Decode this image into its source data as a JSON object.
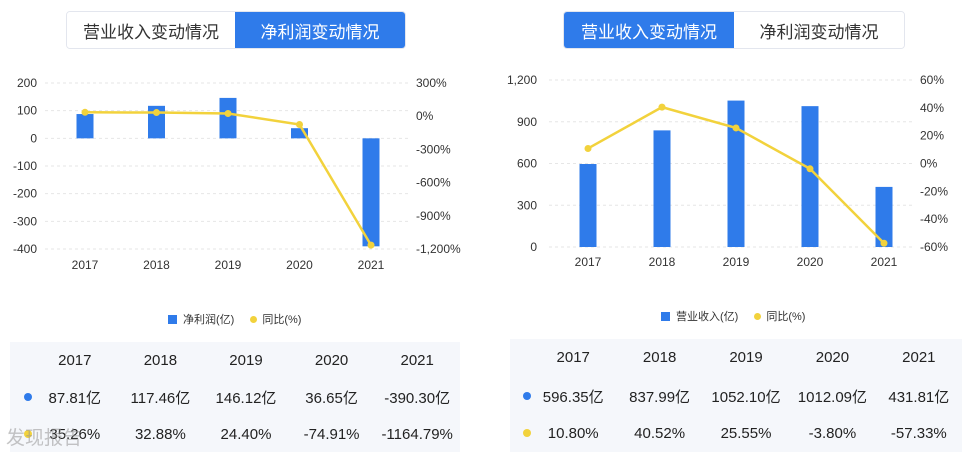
{
  "left": {
    "tabs": [
      {
        "label": "营业收入变动情况",
        "active": false
      },
      {
        "label": "净利润变动情况",
        "active": true
      }
    ],
    "legend": {
      "bar": "净利润(亿)",
      "line": "同比(%)"
    },
    "table": {
      "years": [
        "2017",
        "2018",
        "2019",
        "2020",
        "2021"
      ],
      "row1": [
        "87.81亿",
        "117.46亿",
        "146.12亿",
        "36.65亿",
        "-390.30亿"
      ],
      "row2": [
        "35.26%",
        "32.88%",
        "24.40%",
        "-74.91%",
        "-1164.79%"
      ]
    }
  },
  "right": {
    "tabs": [
      {
        "label": "营业收入变动情况",
        "active": true
      },
      {
        "label": "净利润变动情况",
        "active": false
      }
    ],
    "legend": {
      "bar": "营业收入(亿)",
      "line": "同比(%)"
    },
    "table": {
      "years": [
        "2017",
        "2018",
        "2019",
        "2020",
        "2021"
      ],
      "row1": [
        "596.35亿",
        "837.99亿",
        "1052.10亿",
        "1012.09亿",
        "431.81亿"
      ],
      "row2": [
        "10.80%",
        "40.52%",
        "25.55%",
        "-3.80%",
        "-57.33%"
      ]
    }
  },
  "watermark": "发现报告",
  "colors": {
    "bar": "#2f7bea",
    "line": "#f2d23c",
    "tab_active": "#2f7bea"
  },
  "chart_data": [
    {
      "type": "bar",
      "categories": [
        "2017",
        "2018",
        "2019",
        "2020",
        "2021"
      ],
      "series": [
        {
          "name": "净利润(亿)",
          "type": "bar",
          "axis": "left",
          "values": [
            87.81,
            117.46,
            146.12,
            36.65,
            -390.3
          ]
        },
        {
          "name": "同比(%)",
          "type": "line",
          "axis": "right",
          "values": [
            35.26,
            32.88,
            24.4,
            -74.91,
            -1164.79
          ]
        }
      ],
      "y_left": {
        "ticks": [
          "200",
          "100",
          "0",
          "-100",
          "-200",
          "-300",
          "-400"
        ],
        "ylim": [
          -400,
          200
        ]
      },
      "y_right": {
        "ticks": [
          "300%",
          "0%",
          "-300%",
          "-600%",
          "-900%",
          "-1,200%"
        ],
        "ylim": [
          -1200,
          300
        ]
      },
      "legend": "bottom-center"
    },
    {
      "type": "bar",
      "categories": [
        "2017",
        "2018",
        "2019",
        "2020",
        "2021"
      ],
      "series": [
        {
          "name": "营业收入(亿)",
          "type": "bar",
          "axis": "left",
          "values": [
            596.35,
            837.99,
            1052.1,
            1012.09,
            431.81
          ]
        },
        {
          "name": "同比(%)",
          "type": "line",
          "axis": "right",
          "values": [
            10.8,
            40.52,
            25.55,
            -3.8,
            -57.33
          ]
        }
      ],
      "y_left": {
        "ticks": [
          "1,200",
          "900",
          "600",
          "300",
          "0"
        ],
        "ylim": [
          0,
          1200
        ]
      },
      "y_right": {
        "ticks": [
          "60%",
          "40%",
          "20%",
          "0%",
          "-20%",
          "-40%",
          "-60%"
        ],
        "ylim": [
          -60,
          60
        ]
      },
      "legend": "bottom-center"
    }
  ]
}
